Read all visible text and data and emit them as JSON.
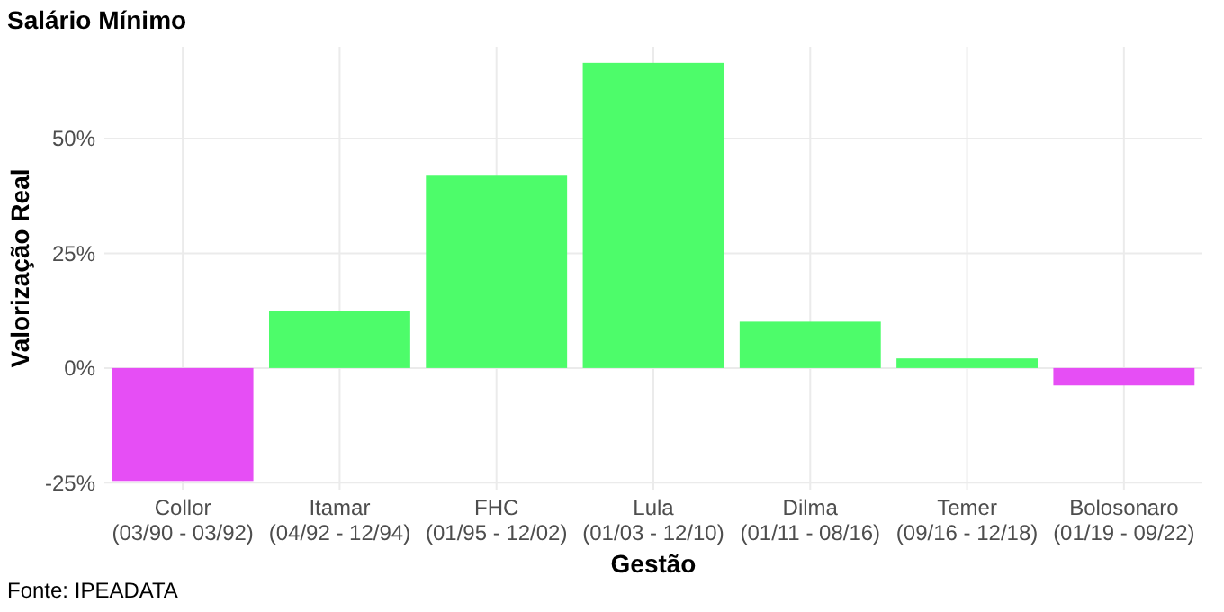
{
  "chart_data": {
    "type": "bar",
    "title": "Salário Mínimo",
    "xlabel": "Gestão",
    "ylabel": "Valorização Real",
    "categories": [
      "Collor\n(03/90 - 03/92)",
      "Itamar\n(04/92 - 12/94)",
      "FHC\n(01/95 - 12/02)",
      "Lula\n(01/03 - 12/10)",
      "Dilma\n(01/11 - 08/16)",
      "Temer\n(09/16 - 12/18)",
      "Bolosonaro\n(01/19 - 09/22)"
    ],
    "values": [
      -24.6,
      12.5,
      41.9,
      66.5,
      10.1,
      2.1,
      -3.8
    ],
    "colors": [
      "#e64ef5",
      "#4dfc6a",
      "#4dfc6a",
      "#4dfc6a",
      "#4dfc6a",
      "#4dfc6a",
      "#e64ef5"
    ],
    "ylim": [
      -26.5,
      70
    ],
    "yticks": [
      {
        "value": -25,
        "label": "-25%"
      },
      {
        "value": 0,
        "label": "0%"
      },
      {
        "value": 25,
        "label": "25%"
      },
      {
        "value": 50,
        "label": "50%"
      }
    ],
    "grid": true,
    "annotations": [
      "Fonte: IPEADATA"
    ]
  }
}
